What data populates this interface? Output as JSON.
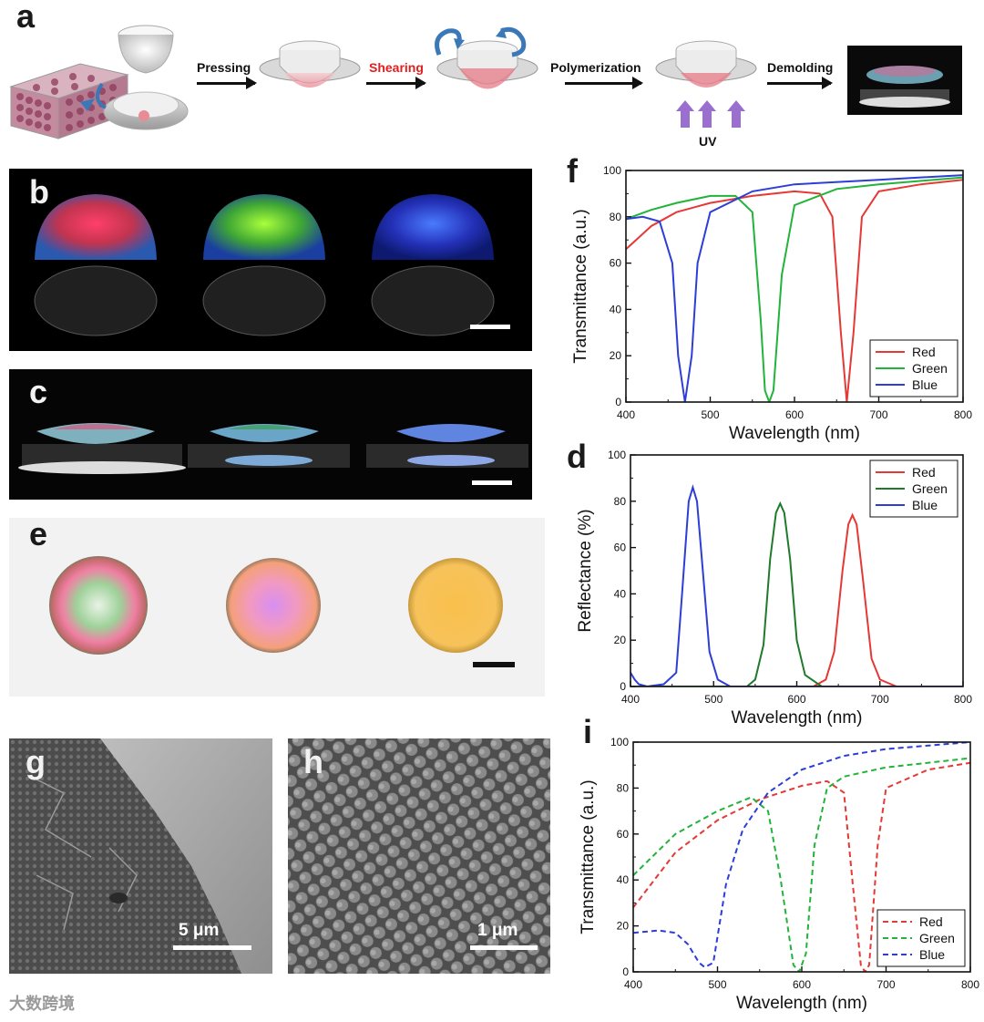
{
  "panel_labels": {
    "a": "a",
    "b": "b",
    "c": "c",
    "d": "d",
    "e": "e",
    "f": "f",
    "g": "g",
    "h": "h",
    "i": "i"
  },
  "process": {
    "steps": [
      "Pressing",
      "Shearing",
      "Polymerization",
      "Demolding"
    ],
    "uv_label": "UV",
    "colors": {
      "step_text": "#111111",
      "shearing_text": "#e02020",
      "uv_arrow": "#9b6fd0",
      "rotation_arrow": "#3a78b8"
    }
  },
  "scale_bars": {
    "g": "5 μm",
    "h": "1 μm"
  },
  "watermark": "大数跨境",
  "colors": {
    "red": "#e53935",
    "green": "#22b33a",
    "dark_green": "#1f7a2a",
    "blue": "#2c3ed6"
  },
  "chart_data": [
    {
      "panel": "f",
      "type": "line",
      "xlabel": "Wavelength (nm)",
      "ylabel": "Transmittance (a.u.)",
      "xlim": [
        400,
        800
      ],
      "ylim": [
        0,
        100
      ],
      "xticks": [
        "400",
        "500",
        "600",
        "700",
        "800"
      ],
      "yticks": [
        "0",
        "20",
        "40",
        "60",
        "80",
        "100"
      ],
      "legend": [
        "Red",
        "Green",
        "Blue"
      ],
      "legend_position": "bottom-right",
      "line_style": "solid",
      "series": [
        {
          "name": "Red",
          "color": "#e53935",
          "x": [
            400,
            430,
            460,
            500,
            550,
            600,
            630,
            645,
            655,
            662,
            670,
            680,
            700,
            750,
            800
          ],
          "y": [
            66,
            76,
            82,
            86,
            89,
            91,
            90,
            80,
            30,
            0,
            30,
            80,
            91,
            94,
            96
          ]
        },
        {
          "name": "Green",
          "color": "#22b33a",
          "x": [
            400,
            430,
            460,
            500,
            530,
            550,
            560,
            565,
            570,
            575,
            585,
            600,
            650,
            700,
            800
          ],
          "y": [
            79,
            83,
            86,
            89,
            89,
            82,
            35,
            5,
            0,
            5,
            55,
            85,
            92,
            94,
            97
          ]
        },
        {
          "name": "Blue",
          "color": "#2c3ed6",
          "x": [
            400,
            420,
            440,
            455,
            462,
            470,
            478,
            485,
            500,
            550,
            600,
            700,
            800
          ],
          "y": [
            79,
            80,
            78,
            60,
            20,
            0,
            20,
            60,
            82,
            91,
            94,
            96,
            98
          ]
        }
      ]
    },
    {
      "panel": "d",
      "type": "line",
      "xlabel": "Wavelength (nm)",
      "ylabel": "Reflectance (%)",
      "xlim": [
        400,
        800
      ],
      "ylim": [
        0,
        100
      ],
      "xticks": [
        "400",
        "500",
        "600",
        "700",
        "800"
      ],
      "yticks": [
        "0",
        "20",
        "40",
        "60",
        "80",
        "100"
      ],
      "legend": [
        "Red",
        "Green",
        "Blue"
      ],
      "legend_position": "top-right",
      "line_style": "solid",
      "series": [
        {
          "name": "Red",
          "color": "#e53935",
          "x": [
            400,
            620,
            635,
            645,
            655,
            662,
            667,
            672,
            680,
            690,
            700,
            720,
            800
          ],
          "y": [
            0,
            0,
            3,
            15,
            50,
            70,
            74,
            70,
            45,
            12,
            3,
            0,
            0
          ]
        },
        {
          "name": "Green",
          "color": "#1f7a2a",
          "x": [
            400,
            540,
            550,
            560,
            568,
            575,
            580,
            585,
            592,
            600,
            610,
            630,
            800
          ],
          "y": [
            0,
            0,
            3,
            18,
            55,
            75,
            79,
            75,
            55,
            20,
            5,
            0,
            0
          ]
        },
        {
          "name": "Blue",
          "color": "#2c3ed6",
          "x": [
            400,
            405,
            410,
            420,
            440,
            455,
            462,
            470,
            475,
            480,
            487,
            495,
            505,
            520,
            800
          ],
          "y": [
            6,
            3,
            1,
            0,
            1,
            6,
            40,
            80,
            86,
            80,
            50,
            15,
            3,
            0,
            0
          ]
        }
      ]
    },
    {
      "panel": "i",
      "type": "line",
      "xlabel": "Wavelength (nm)",
      "ylabel": "Transmittance (a.u.)",
      "xlim": [
        400,
        800
      ],
      "ylim": [
        0,
        100
      ],
      "xticks": [
        "400",
        "500",
        "600",
        "700",
        "800"
      ],
      "yticks": [
        "0",
        "20",
        "40",
        "60",
        "80",
        "100"
      ],
      "legend": [
        "Red",
        "Green",
        "Blue"
      ],
      "legend_position": "bottom-right",
      "line_style": "dashed",
      "series": [
        {
          "name": "Red",
          "color": "#e53935",
          "x": [
            400,
            450,
            500,
            550,
            600,
            630,
            650,
            660,
            670,
            675,
            680,
            690,
            700,
            750,
            800
          ],
          "y": [
            28,
            52,
            66,
            75,
            81,
            83,
            78,
            40,
            3,
            0,
            3,
            55,
            80,
            88,
            91
          ]
        },
        {
          "name": "Green",
          "color": "#22b33a",
          "x": [
            400,
            450,
            500,
            540,
            560,
            575,
            590,
            597,
            605,
            615,
            630,
            650,
            700,
            800
          ],
          "y": [
            42,
            60,
            70,
            76,
            70,
            40,
            3,
            0,
            8,
            55,
            80,
            85,
            89,
            93
          ]
        },
        {
          "name": "Blue",
          "color": "#2c3ed6",
          "x": [
            400,
            430,
            450,
            465,
            478,
            485,
            495,
            510,
            530,
            560,
            600,
            650,
            700,
            800
          ],
          "y": [
            17,
            18,
            17,
            12,
            4,
            2,
            4,
            38,
            62,
            78,
            88,
            94,
            97,
            100
          ]
        }
      ]
    }
  ]
}
